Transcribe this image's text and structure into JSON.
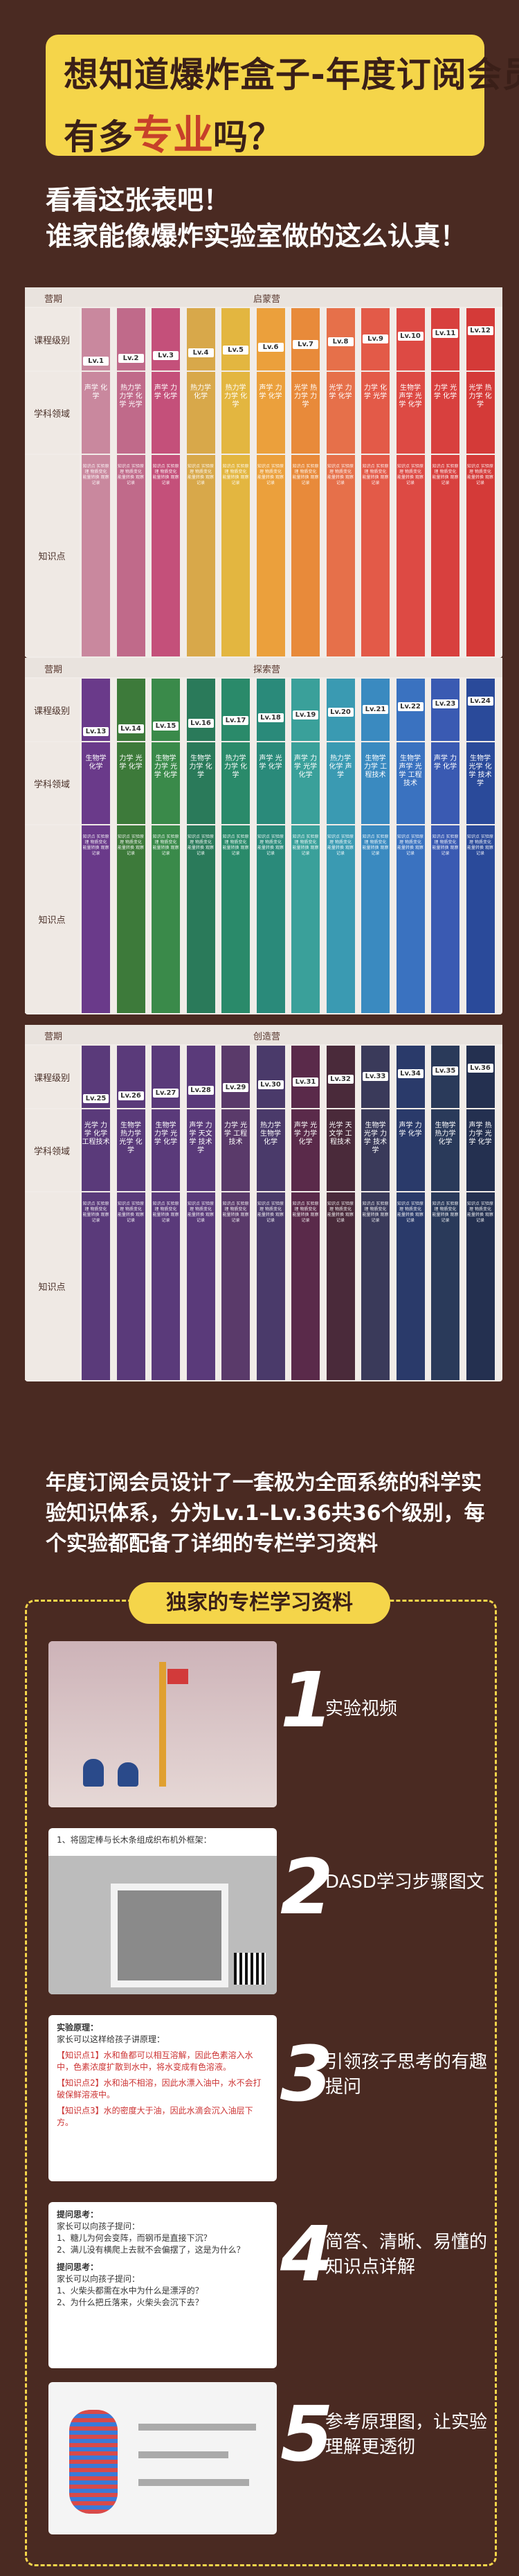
{
  "banner": {
    "line1": "想知道爆炸盒子-年度订阅会员",
    "line2_pre": "有多",
    "line2_hl": "专业",
    "line2_post": "吗？"
  },
  "subtitle": {
    "line1": "看看这张表吧！",
    "line2": "谁家能像爆炸实验室做的这么认真！"
  },
  "table_labels": {
    "stage": "营期",
    "level": "课程级别",
    "subject": "学科领域",
    "knowledge": "知识点"
  },
  "stages": [
    {
      "name": "启蒙营",
      "levels": [
        "Lv.1",
        "Lv.2",
        "Lv.3",
        "Lv.4",
        "Lv.5",
        "Lv.6",
        "Lv.7",
        "Lv.8",
        "Lv.9",
        "Lv.10",
        "Lv.11",
        "Lv.12"
      ],
      "colors": [
        "#c9889e",
        "#c06a8a",
        "#c4507a",
        "#d8a84a",
        "#e3b640",
        "#eba03c",
        "#e88a3a",
        "#e6704a",
        "#e35a48",
        "#dd4a44",
        "#d8403e",
        "#d43a38"
      ],
      "subjects": [
        "声学 化学",
        "热力学 力学 化学 光学",
        "声学 力学 化学",
        "热力学 化学",
        "热力学 力学 化学",
        "声学 力学 化学",
        "光学 热力学 力学",
        "光学 力学 化学",
        "力学 化学 光学",
        "生物学 声学 光学 化学",
        "力学 光学 化学",
        "光学 热力学 化学"
      ]
    },
    {
      "name": "探索营",
      "levels": [
        "Lv.13",
        "Lv.14",
        "Lv.15",
        "Lv.16",
        "Lv.17",
        "Lv.18",
        "Lv.19",
        "Lv.20",
        "Lv.21",
        "Lv.22",
        "Lv.23",
        "Lv.24"
      ],
      "colors": [
        "#6a3a8a",
        "#3d7a3a",
        "#3a8a4a",
        "#2a7a5a",
        "#2a8a6a",
        "#2a8a7a",
        "#3aa09a",
        "#3a9ab2",
        "#3a8ac0",
        "#3a72c0",
        "#3a5ab2",
        "#2a4a9a"
      ],
      "subjects": [
        "生物学 化学",
        "力学 光学 化学",
        "生物学 力学 光学 化学",
        "生物学 力学 化学",
        "热力学 力学 化学",
        "声学 光学 化学",
        "声学 力学 光学 化学",
        "热力学 化学 声学",
        "生物学 力学 工程技术",
        "生物学 声学 光学 工程技术",
        "声学 力学 化学",
        "生物学 光学 化学 技术学"
      ]
    },
    {
      "name": "创造营",
      "levels": [
        "Lv.25",
        "Lv.26",
        "Lv.27",
        "Lv.28",
        "Lv.29",
        "Lv.30",
        "Lv.31",
        "Lv.32",
        "Lv.33",
        "Lv.34",
        "Lv.35",
        "Lv.36"
      ],
      "colors": [
        "#5a3a7a",
        "#5a3a7a",
        "#5a3a7a",
        "#5a3a7a",
        "#5a3a6a",
        "#4a3a6a",
        "#5a2a4a",
        "#4a2a3a",
        "#3a3a5a",
        "#2a3a6a",
        "#2a3a5a",
        "#243050"
      ],
      "subjects": [
        "光学 力学 化学 工程技术",
        "生物学 热力学 光学 化学",
        "生物学 力学 光学 化学",
        "声学 力学 天文学 技术学",
        "力学 光学 工程技术",
        "热力学 生物学 化学",
        "声学 光学 力学 化学",
        "光学 天文学 工程技术",
        "生物学 光学 力学 技术学",
        "声学 力学 化学",
        "生物学 热力学 化学",
        "声学 热力学 光学 化学"
      ]
    }
  ],
  "knowledge_text": "知识点 实验原理 物质变化 能量转换 观察记录",
  "paragraph": "年度订阅会员设计了一套极为全面系统的科学实验知识体系，分为Lv.1–Lv.36共36个级别，每个实验都配备了详细的专栏学习资料",
  "feature_title": "独家的专栏学习资料",
  "features": [
    {
      "num": "1",
      "text": "实验视频"
    },
    {
      "num": "2",
      "text": "DASD学习步骤图文"
    },
    {
      "num": "3",
      "text": "引领孩子思考的有趣提问"
    },
    {
      "num": "4",
      "text": "简答、清晰、易懂的知识点详解"
    },
    {
      "num": "5",
      "text": "参考原理图，让实验理解更透彻"
    }
  ],
  "card2_caption": "1、将固定棒与长木条组成织布机外框架：",
  "card3": {
    "title": "实验原理：",
    "l1": "家长可以这样给孩子讲原理：",
    "l2": "【知识点1】水和鱼都可以相互溶解，因此色素溶入水中，色素浓度扩散到水中，将水变成有色溶液。",
    "l3": "【知识点2】水和油不相溶，因此水漂入油中，水不会打破保鲜溶液中。",
    "l4": "【知识点3】水的密度大于油，因此水滴会沉入油层下方。"
  },
  "card4": {
    "t1": "提问思考：",
    "a1": "家长可以向孩子提问：",
    "a2": "1、糖儿为何会变阵，而钢币是直接下沉？",
    "a3": "2、满儿没有横爬上去就不会偏摆了，这是为什么？",
    "t2": "提问思考：",
    "b1": "家长可以向孩子提问：",
    "b2": "1、火柴头都需在水中为什么是漂浮的？",
    "b3": "2、为什么把丘落来，火柴头会沉下去？"
  }
}
